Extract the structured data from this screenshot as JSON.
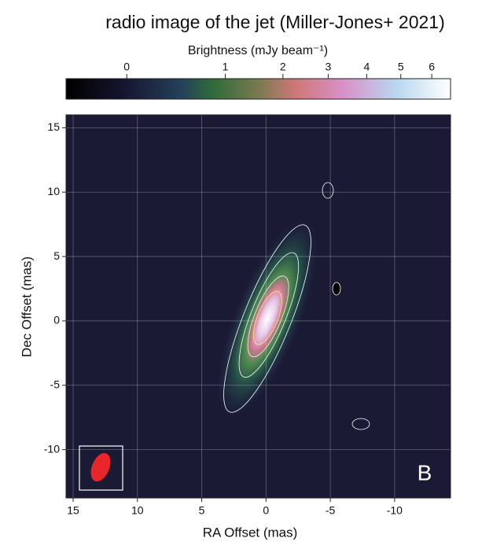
{
  "chart_data": {
    "type": "image",
    "title": "radio image of the jet (Miller-Jones+ 2021)",
    "colorbar_label": "Brightness (mJy beam⁻¹)",
    "colorbar_lim": [
      -0.17,
      6.65
    ],
    "colorbar_scale": "sqrt",
    "colorbar_ticks": [
      0,
      1,
      2,
      3,
      4,
      5,
      6
    ],
    "x_label": "RA Offset (mas)",
    "y_label": "Dec Offset (mas)",
    "xlim": [
      15.55,
      -14.35
    ],
    "ylim": [
      -13.75,
      16.0
    ],
    "xticks": [
      15,
      10,
      5,
      0,
      -5,
      -10
    ],
    "yticks": [
      15,
      10,
      5,
      0,
      -5,
      -10
    ],
    "grid": true,
    "annotation": "B"
  }
}
